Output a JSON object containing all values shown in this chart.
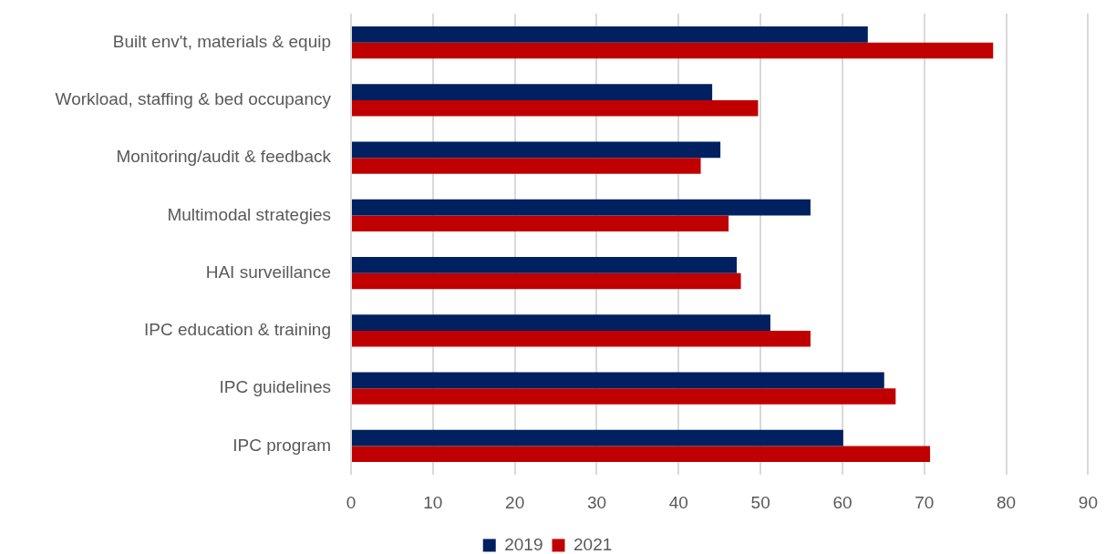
{
  "chart_data": {
    "type": "bar",
    "orientation": "horizontal",
    "categories": [
      "Built env't, materials & equip",
      "Workload, staffing & bed occupancy",
      "Monitoring/audit & feedback",
      "Multimodal strategies",
      "HAI surveillance",
      "IPC education & training",
      "IPC guidelines",
      "IPC program"
    ],
    "series": [
      {
        "name": "2019",
        "color": "#002060",
        "values": [
          63.1,
          44.1,
          45.1,
          56.1,
          47.1,
          51.2,
          65.1,
          60.1
        ]
      },
      {
        "name": "2021",
        "color": "#c00000",
        "values": [
          78.4,
          49.7,
          42.7,
          46.1,
          47.6,
          56.1,
          66.5,
          70.7
        ]
      }
    ],
    "xlim": [
      0,
      90
    ],
    "xticks": [
      0,
      10,
      20,
      30,
      40,
      50,
      60,
      70,
      80,
      90
    ],
    "grid": "x",
    "legend": "bottom"
  }
}
